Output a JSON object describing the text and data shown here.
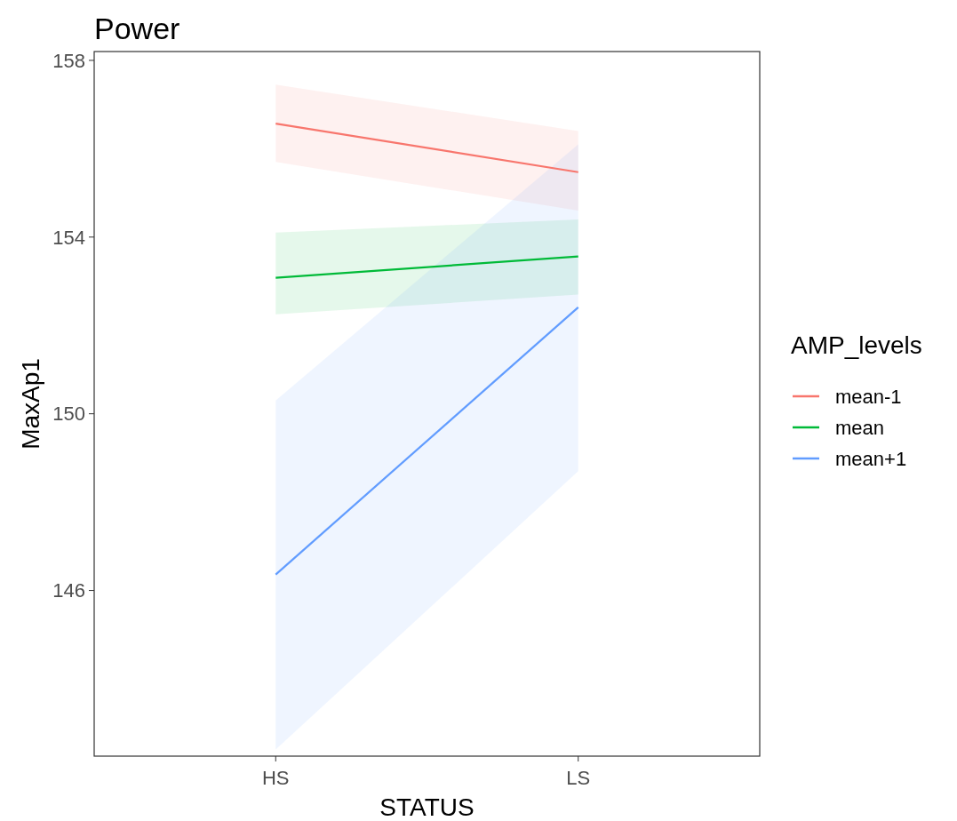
{
  "chart_data": {
    "type": "line",
    "title": "Power",
    "xlabel": "STATUS",
    "ylabel": "MaxAp1",
    "legend_title": "AMP_levels",
    "categories": [
      "HS",
      "LS"
    ],
    "series": [
      {
        "name": "mean-1",
        "color": "#f8766d",
        "values": [
          156.57,
          155.47
        ],
        "lower": [
          155.7,
          154.6
        ],
        "upper": [
          157.45,
          156.4
        ]
      },
      {
        "name": "mean",
        "color": "#00ba38",
        "values": [
          153.08,
          153.56
        ],
        "lower": [
          152.25,
          152.7
        ],
        "upper": [
          154.1,
          154.4
        ]
      },
      {
        "name": "mean+1",
        "color": "#619cff",
        "values": [
          146.36,
          152.41
        ],
        "lower": [
          142.4,
          148.7
        ],
        "upper": [
          150.3,
          156.1
        ]
      }
    ],
    "ylim": [
      142.25,
      158.2
    ],
    "yticks": [
      146,
      150,
      154,
      158
    ],
    "grid": false,
    "legend": "right"
  }
}
